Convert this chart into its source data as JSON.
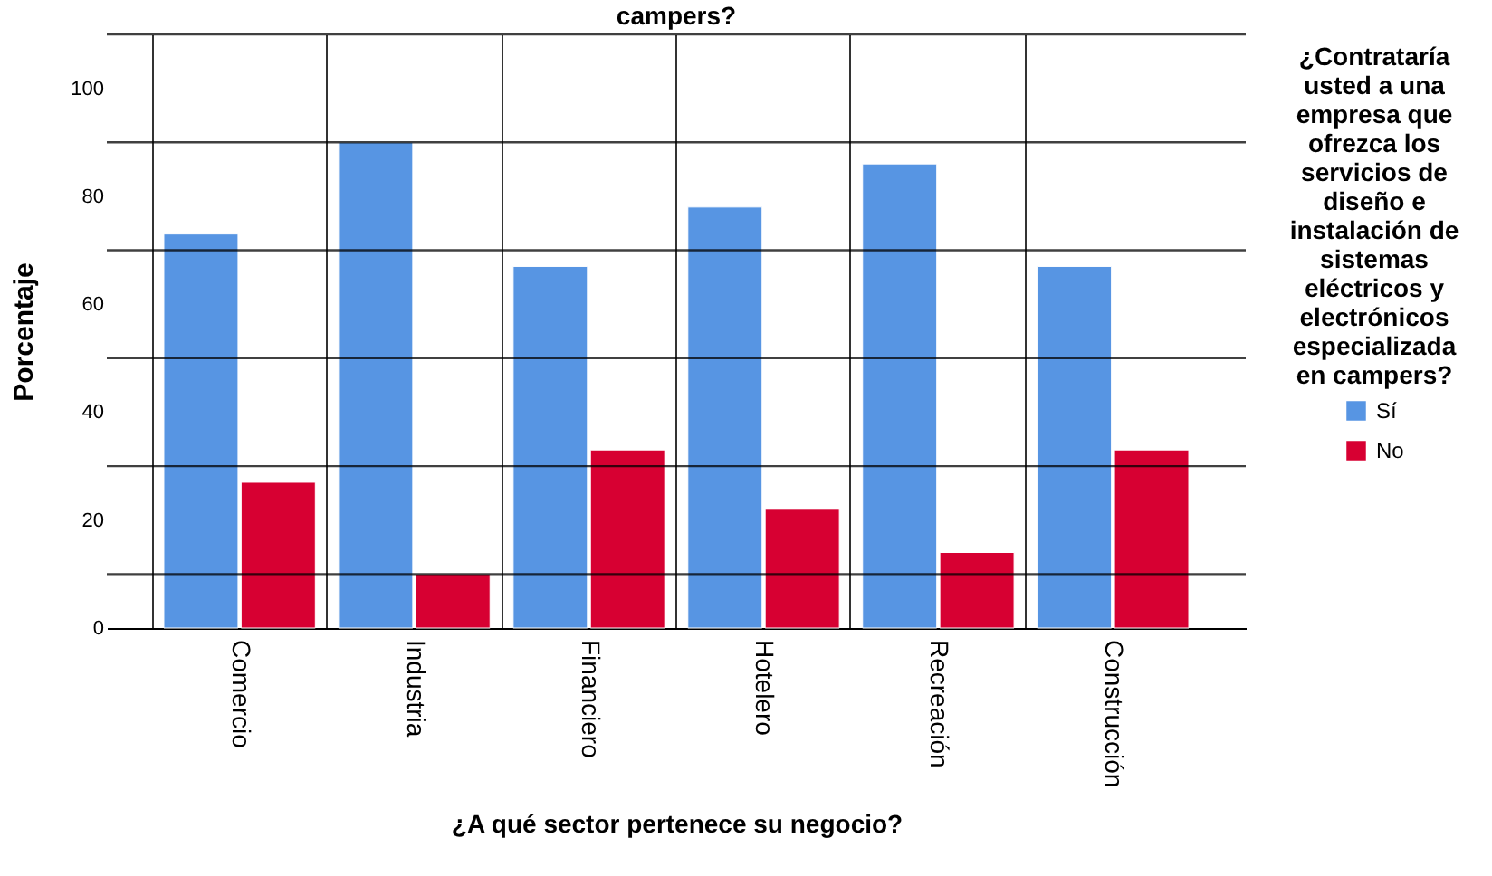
{
  "chart_data": {
    "type": "bar",
    "title": "campers?",
    "xlabel": "¿A qué sector pertenece su negocio?",
    "ylabel": "Porcentaje",
    "legend_title": "¿Contrataría usted a una empresa que ofrezca los servicios de diseño e instalación de sistemas eléctricos y electrónicos especializada en campers?",
    "categories": [
      "Comercio",
      "Industria",
      "Financiero",
      "Hotelero",
      "Recreación",
      "Construcción"
    ],
    "series": [
      {
        "name": "Sí",
        "color": "#5795e3",
        "values": [
          73,
          90,
          67,
          78,
          86,
          67
        ]
      },
      {
        "name": "No",
        "color": "#d70032",
        "values": [
          27,
          10,
          33,
          22,
          14,
          33
        ]
      }
    ],
    "ylim": [
      0,
      110
    ],
    "yticks": [
      0,
      {
        "value": 10,
        "label": null
      },
      20,
      {
        "value": 30,
        "label": null
      },
      40,
      {
        "value": 50,
        "label": null
      },
      60,
      {
        "value": 70,
        "label": null
      },
      80,
      {
        "value": 90,
        "label": null
      },
      100
    ],
    "grid": "xy",
    "legend": "right"
  }
}
